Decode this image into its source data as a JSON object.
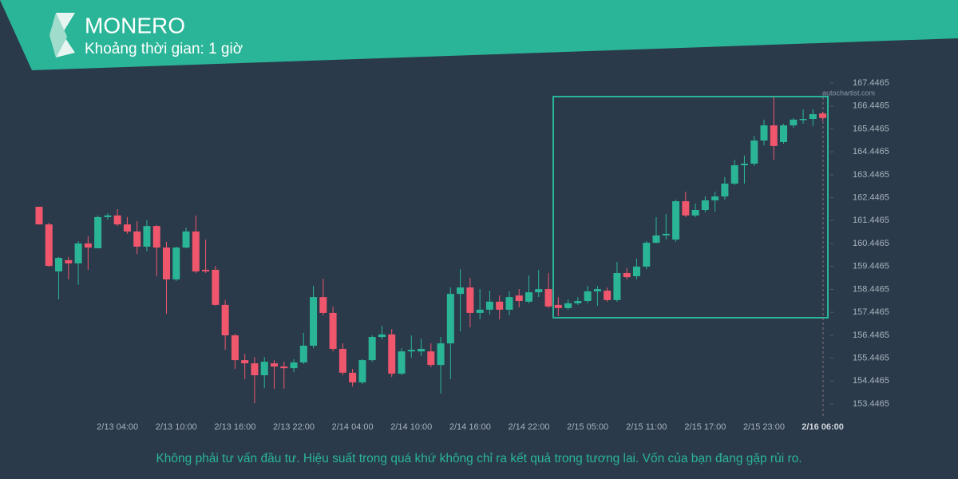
{
  "header": {
    "title": "MONERO",
    "subtitle": "Khoảng thời gian: 1 giờ",
    "watermark": "autochartist.com"
  },
  "chart_data": {
    "type": "candlestick",
    "categories": [
      null,
      null,
      null,
      null,
      null,
      null,
      null,
      null,
      "2/13 04:00",
      null,
      null,
      null,
      null,
      null,
      "2/13 10:00",
      null,
      null,
      null,
      null,
      null,
      "2/13 16:00",
      null,
      null,
      null,
      null,
      null,
      "2/13 22:00",
      null,
      null,
      null,
      null,
      null,
      "2/14 04:00",
      null,
      null,
      null,
      null,
      null,
      "2/14 10:00",
      null,
      null,
      null,
      null,
      null,
      "2/14 16:00",
      null,
      null,
      null,
      null,
      null,
      "2/14 22:00",
      null,
      null,
      null,
      null,
      null,
      "2/15 05:00",
      null,
      null,
      null,
      null,
      null,
      "2/15 11:00",
      null,
      null,
      null,
      null,
      null,
      "2/15 17:00",
      null,
      null,
      null,
      null,
      null,
      "2/15 23:00",
      null,
      null,
      null,
      null,
      null,
      "2/16 06:00"
    ],
    "open": [
      162.05,
      161.28,
      159.23,
      159.72,
      159.58,
      160.45,
      160.24,
      161.6,
      161.67,
      161.28,
      160.97,
      160.31,
      161.21,
      160.27,
      158.88,
      160.27,
      160.97,
      159.3,
      159.3,
      157.77,
      156.44,
      155.36,
      155.22,
      154.7,
      155.22,
      155.08,
      155.01,
      155.26,
      155.99,
      158.11,
      157.42,
      155.85,
      154.81,
      154.39,
      155.36,
      156.37,
      156.48,
      154.77,
      155.74,
      155.74,
      155.74,
      155.15,
      156.09,
      158.25,
      158.53,
      157.42,
      157.56,
      157.91,
      157.56,
      158.18,
      157.91,
      158.32,
      158.46,
      157.77,
      157.63,
      157.84,
      157.94,
      158.36,
      158.39,
      157.98,
      159.16,
      159.02,
      159.44,
      160.48,
      160.8,
      160.62,
      162.29,
      161.67,
      161.91,
      162.33,
      162.5,
      163.06,
      163.86,
      163.93,
      164.94,
      165.6,
      164.87,
      165.6,
      165.85,
      165.88,
      166.12
    ],
    "high": [
      162.05,
      161.35,
      159.86,
      159.86,
      160.55,
      160.76,
      161.67,
      161.77,
      161.94,
      161.6,
      161.42,
      161.46,
      161.25,
      160.52,
      160.31,
      161.14,
      161.67,
      160.62,
      159.47,
      157.97,
      156.51,
      155.64,
      155.5,
      155.5,
      155.36,
      155.29,
      155.4,
      156.55,
      158.6,
      158.91,
      157.7,
      156.09,
      154.98,
      155.4,
      156.44,
      156.86,
      156.72,
      155.88,
      156.44,
      156.3,
      156.09,
      156.37,
      158.53,
      159.33,
      158.95,
      158.46,
      158.39,
      158.18,
      158.36,
      158.46,
      159.05,
      159.3,
      159.16,
      158.11,
      158.01,
      158.11,
      158.6,
      158.6,
      158.53,
      159.65,
      159.37,
      159.79,
      160.55,
      161.6,
      161.74,
      162.36,
      162.71,
      162.19,
      162.5,
      162.71,
      163.34,
      164.1,
      164.28,
      165.15,
      165.85,
      166.82,
      165.67,
      165.92,
      166.3,
      166.3,
      166.19
    ],
    "low": [
      161.28,
      159.43,
      158.01,
      158.88,
      158.64,
      159.3,
      160.24,
      161.49,
      161.21,
      160.87,
      159.99,
      160.1,
      159.02,
      157.38,
      158.81,
      160.24,
      159.16,
      159.16,
      157.73,
      155.81,
      154.98,
      154.53,
      153.48,
      154.14,
      154.11,
      154.11,
      154.84,
      155.19,
      155.88,
      157.31,
      155.74,
      154.7,
      154.21,
      154.32,
      155.29,
      156.27,
      154.63,
      154.7,
      155.47,
      155.54,
      155.05,
      153.9,
      154.53,
      156.62,
      156.79,
      157.14,
      157.35,
      157.14,
      157.31,
      157.66,
      157.84,
      158.11,
      157.63,
      157.28,
      157.56,
      157.77,
      157.84,
      157.73,
      157.91,
      157.91,
      158.88,
      158.88,
      159.33,
      160.45,
      160.62,
      160.52,
      161.6,
      161.6,
      161.81,
      161.84,
      162.36,
      163.0,
      163.06,
      163.83,
      164.73,
      164.1,
      164.8,
      165.5,
      165.67,
      165.57,
      165.78
    ],
    "close": [
      161.28,
      159.47,
      159.82,
      159.58,
      160.45,
      160.27,
      161.6,
      161.67,
      161.28,
      160.97,
      160.31,
      161.21,
      160.27,
      158.88,
      160.27,
      160.97,
      159.23,
      159.23,
      157.77,
      156.44,
      155.36,
      155.22,
      154.7,
      155.29,
      155.08,
      155.01,
      155.26,
      155.99,
      158.11,
      157.42,
      155.85,
      154.81,
      154.39,
      155.36,
      156.37,
      156.48,
      154.77,
      155.74,
      155.81,
      155.85,
      155.15,
      156.09,
      158.25,
      158.53,
      157.42,
      157.56,
      157.91,
      157.56,
      158.11,
      157.94,
      158.32,
      158.46,
      157.7,
      157.63,
      157.84,
      157.94,
      158.36,
      158.46,
      157.98,
      159.16,
      158.98,
      159.44,
      160.48,
      160.8,
      160.87,
      162.29,
      161.67,
      161.91,
      162.33,
      162.5,
      163.06,
      163.86,
      163.93,
      164.94,
      165.6,
      164.7,
      165.6,
      165.85,
      165.88,
      166.09,
      165.92
    ],
    "up_color": "#2ab597",
    "down_color": "#f0566c",
    "ylim": [
      152.9465,
      167.7465
    ],
    "yticks": [
      153.4465,
      154.4465,
      155.4465,
      156.4465,
      157.4465,
      158.4465,
      159.4465,
      160.4465,
      161.4465,
      162.4465,
      163.4465,
      164.4465,
      165.4465,
      166.4465,
      167.4465
    ]
  },
  "footer": {
    "disclaimer": "Không phải tư vấn đầu tư. Hiệu suất trong quá khứ không chỉ ra kết quả trong tương lai. Vốn của bạn đang gặp rủi ro."
  }
}
